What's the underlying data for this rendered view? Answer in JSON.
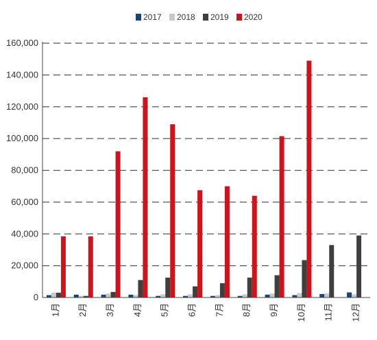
{
  "chart_data": {
    "type": "bar",
    "title": "",
    "xlabel": "",
    "ylabel": "",
    "categories": [
      "1月",
      "2月",
      "3月",
      "4月",
      "5月",
      "6月",
      "7月",
      "8月",
      "9月",
      "10月",
      "11月",
      "12月"
    ],
    "ylim": [
      0,
      160000
    ],
    "y_ticks": [
      "0",
      "20,000",
      "40,000",
      "60,000",
      "80,000",
      "100,000",
      "120,000",
      "140,000",
      "160,000"
    ],
    "grid": "horizontal dashed",
    "legend_position": "top",
    "series": [
      {
        "name": "2017",
        "color": "#1a4474",
        "values": [
          1500,
          1800,
          1800,
          1800,
          1000,
          1000,
          1000,
          1000,
          1800,
          1500,
          2200,
          3200
        ]
      },
      {
        "name": "2018",
        "color": "#c8c8c8",
        "values": [
          3000,
          1000,
          2500,
          1500,
          2000,
          2000,
          1500,
          2000,
          2500,
          2800,
          2500,
          2000
        ]
      },
      {
        "name": "2019",
        "color": "#3f3f3f",
        "values": [
          3000,
          1000,
          3500,
          11000,
          12500,
          7000,
          9000,
          12500,
          14000,
          23500,
          33000,
          39000
        ]
      },
      {
        "name": "2020",
        "color": "#d0121b",
        "values": [
          38500,
          38500,
          92000,
          126000,
          109000,
          67500,
          70000,
          64000,
          101500,
          149000,
          null,
          null
        ]
      }
    ]
  }
}
